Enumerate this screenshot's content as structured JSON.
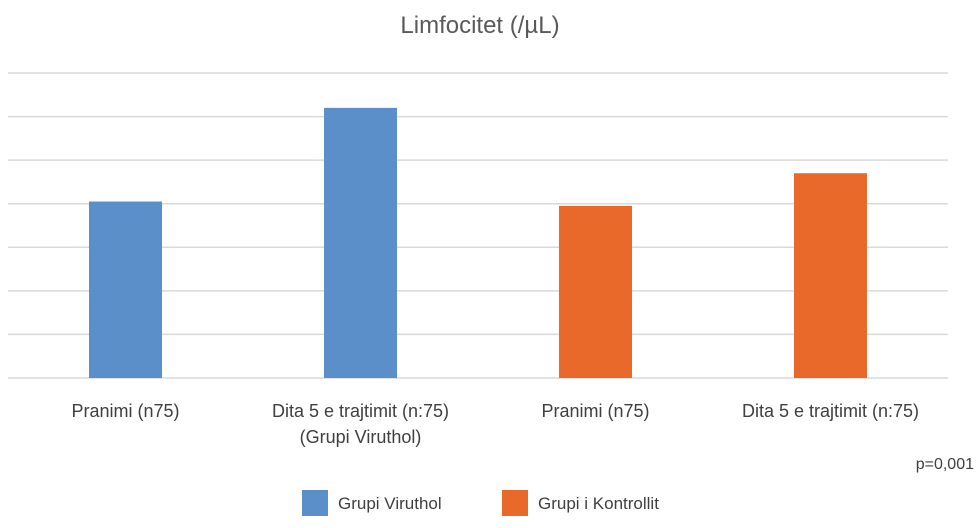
{
  "chart_data": {
    "type": "bar",
    "title": "Limfocitet (/µL)",
    "categories": [
      [
        "Pranimi (n75)"
      ],
      [
        "Dita 5 e trajtimit (n:75)",
        "(Grupi Viruthol)"
      ],
      [
        "Pranimi (n75)"
      ],
      [
        "Dita 5 e trajtimit (n:75)"
      ]
    ],
    "values": [
      4.05,
      6.2,
      3.95,
      4.7
    ],
    "bar_series": [
      0,
      0,
      1,
      1
    ],
    "series": [
      {
        "name": "Grupi Viruthol",
        "color": "#5b8fc9"
      },
      {
        "name": "Grupi i Kontrollit",
        "color": "#e8692a"
      }
    ],
    "ylim": [
      0,
      7
    ],
    "y_tick_labels": "none",
    "grid": true,
    "legend_position": "bottom",
    "annotation": "p=0,001"
  }
}
